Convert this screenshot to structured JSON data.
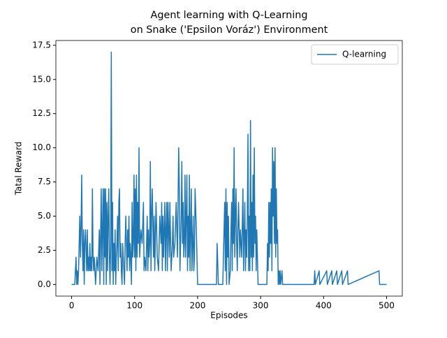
{
  "chart_data": {
    "type": "line",
    "title": "Agent learning with Q-Learning\non Snake ('Epsilon Voráz') Environment",
    "xlabel": "Episodes",
    "ylabel": "Tatal Reward",
    "xlim": [
      -25,
      525
    ],
    "xticks": [
      0,
      100,
      200,
      300,
      400,
      500
    ],
    "ylim": [
      -0.85,
      17.85
    ],
    "yticks": [
      {
        "value": 0,
        "label": "0.0"
      },
      2.5,
      {
        "value": 5,
        "label": "5.0"
      },
      7.5,
      {
        "value": 10,
        "label": "10.0"
      },
      12.5,
      {
        "value": 15,
        "label": "15.0"
      },
      17.5
    ],
    "legend": "upper right",
    "x": [
      0,
      5,
      7,
      8,
      9,
      10,
      11,
      12,
      13,
      14,
      15,
      16,
      17,
      18,
      19,
      20,
      21,
      22,
      24,
      25,
      26,
      27,
      28,
      29,
      30,
      31,
      32,
      33,
      34,
      35,
      36,
      38,
      40,
      42,
      44,
      45,
      47,
      48,
      49,
      50,
      51,
      52,
      53,
      54,
      55,
      56,
      57,
      58,
      59,
      60,
      61,
      62,
      63,
      64,
      65,
      66,
      67,
      68,
      69,
      70,
      71,
      72,
      73,
      74,
      75,
      76,
      77,
      78,
      79,
      80,
      81,
      82,
      83,
      84,
      85,
      86,
      88,
      89,
      90,
      91,
      92,
      93,
      94,
      95,
      96,
      97,
      98,
      99,
      100,
      101,
      102,
      103,
      104,
      105,
      106,
      107,
      108,
      110,
      112,
      114,
      115,
      116,
      118,
      120,
      121,
      122,
      123,
      124,
      125,
      126,
      127,
      128,
      130,
      131,
      132,
      134,
      136,
      138,
      140,
      142,
      143,
      144,
      145,
      146,
      148,
      149,
      150,
      151,
      152,
      153,
      154,
      155,
      156,
      158,
      160,
      161,
      162,
      164,
      166,
      168,
      170,
      171,
      172,
      174,
      175,
      176,
      177,
      178,
      179,
      180,
      181,
      182,
      183,
      184,
      185,
      186,
      187,
      188,
      189,
      190,
      191,
      192,
      193,
      194,
      195,
      196,
      198,
      199,
      200,
      230,
      231,
      233,
      240,
      241,
      243,
      244,
      245,
      246,
      247,
      248,
      249,
      250,
      252,
      253,
      254,
      255,
      256,
      257,
      258,
      259,
      260,
      261,
      262,
      263,
      264,
      265,
      267,
      268,
      270,
      272,
      273,
      275,
      276,
      277,
      278,
      279,
      280,
      281,
      282,
      283,
      284,
      285,
      286,
      287,
      288,
      289,
      290,
      291,
      292,
      293,
      294,
      295,
      296,
      310,
      311,
      312,
      313,
      314,
      315,
      316,
      317,
      318,
      319,
      320,
      321,
      322,
      323,
      324,
      325,
      326,
      327,
      328,
      329,
      330,
      331,
      332,
      334,
      335,
      385,
      386,
      387,
      393,
      394,
      405,
      406,
      413,
      414,
      421,
      422,
      429,
      430,
      438,
      439,
      488,
      489,
      500
    ],
    "series": [
      {
        "name": "Q-learning",
        "color": "#1f77b4",
        "values": [
          0,
          0,
          2,
          0,
          1,
          0,
          1,
          3,
          5,
          2,
          4,
          8,
          3,
          1,
          4,
          0,
          3,
          4,
          1,
          4,
          1,
          2,
          1,
          3,
          1,
          2,
          1,
          7,
          2,
          1,
          2,
          0,
          2,
          1,
          4,
          0,
          7,
          1,
          4,
          7,
          0,
          7,
          2,
          7,
          0,
          6,
          1,
          5,
          7,
          2,
          0,
          3,
          17,
          1,
          6,
          0,
          3,
          1,
          4,
          0,
          2,
          3,
          5,
          1,
          6,
          7,
          2,
          3,
          1,
          0,
          3,
          2,
          1,
          0,
          3,
          5,
          1,
          4,
          2,
          5,
          1,
          3,
          2,
          0,
          6,
          2,
          3,
          8,
          2,
          7,
          1,
          8,
          2,
          6,
          3,
          10,
          2,
          4,
          3,
          6,
          1,
          2,
          1,
          5,
          1,
          4,
          2,
          3,
          9,
          1,
          5,
          7,
          2,
          5,
          1,
          6,
          2,
          1,
          5,
          3,
          6,
          1,
          5,
          2,
          6,
          1,
          4,
          6,
          1,
          6,
          4,
          2,
          6,
          1,
          3,
          5,
          2,
          3,
          6,
          2,
          10,
          7,
          1,
          5,
          9,
          3,
          6,
          2,
          3,
          8,
          2,
          5,
          8,
          1,
          5,
          2,
          8,
          1,
          4,
          7,
          1,
          3,
          5,
          1,
          2,
          7,
          4,
          2,
          0,
          0,
          3,
          0,
          0,
          2,
          6,
          1,
          7,
          0,
          6,
          2,
          5,
          0,
          1,
          4,
          6,
          1,
          7,
          3,
          10,
          2,
          5,
          7,
          3,
          1,
          4,
          6,
          2,
          4,
          2,
          7,
          1,
          6,
          1,
          4,
          2,
          5,
          11,
          1,
          5,
          1,
          12,
          2,
          6,
          1,
          8,
          2,
          10,
          3,
          5,
          1,
          4,
          2,
          0,
          0,
          3,
          1,
          6,
          2,
          6,
          3,
          7,
          1,
          10,
          5,
          9,
          3,
          10,
          2,
          7,
          3,
          4,
          0,
          1,
          0,
          1,
          0,
          1,
          0,
          0,
          1,
          0,
          1,
          0,
          1,
          0,
          1,
          0,
          1,
          0,
          1,
          0,
          1,
          0,
          1,
          0,
          0
        ]
      }
    ]
  }
}
